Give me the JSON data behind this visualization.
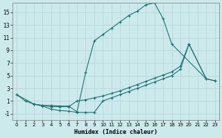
{
  "title": "",
  "xlabel": "Humidex (Indice chaleur)",
  "ylabel": "",
  "background_color": "#cce9ec",
  "grid_color": "#b0d8dc",
  "line_color": "#1a7070",
  "xlim": [
    -0.5,
    23.5
  ],
  "ylim": [
    -2,
    16.5
  ],
  "xticks": [
    0,
    1,
    2,
    3,
    4,
    5,
    6,
    7,
    8,
    9,
    10,
    11,
    12,
    13,
    14,
    15,
    16,
    17,
    18,
    19,
    20,
    21,
    22,
    23
  ],
  "yticks": [
    -1,
    1,
    3,
    5,
    7,
    9,
    11,
    13,
    15
  ],
  "curve1_x": [
    0,
    1,
    2,
    3,
    4,
    5,
    6,
    7,
    8,
    9,
    10,
    11,
    12,
    13,
    14,
    15,
    16,
    17,
    18,
    22
  ],
  "curve1_y": [
    2,
    1,
    0.5,
    0.3,
    0.3,
    0.2,
    0.2,
    -0.7,
    5.5,
    10.5,
    11.5,
    12.5,
    13.5,
    14.5,
    15.2,
    16.2,
    16.5,
    14,
    10,
    4.5
  ],
  "curve2_x": [
    0,
    2,
    3,
    4,
    5,
    6,
    7,
    8,
    9,
    10,
    11,
    12,
    13,
    14,
    15,
    16,
    17,
    18,
    19,
    20,
    22,
    23
  ],
  "curve2_y": [
    2,
    0.5,
    0.3,
    0.1,
    0.1,
    0.1,
    1.0,
    1.2,
    1.5,
    1.8,
    2.2,
    2.6,
    3.1,
    3.6,
    4.1,
    4.6,
    5.1,
    5.6,
    6.5,
    10.0,
    4.5,
    4.2
  ],
  "curve3_x": [
    2,
    3,
    4,
    5,
    6,
    7,
    8,
    9,
    10,
    11,
    12,
    13,
    14,
    15,
    16,
    17,
    18,
    19,
    20,
    22,
    23
  ],
  "curve3_y": [
    0.5,
    0.2,
    -0.3,
    -0.5,
    -0.6,
    -0.8,
    -0.8,
    -0.8,
    1.0,
    1.5,
    2.0,
    2.5,
    3.0,
    3.5,
    4.0,
    4.5,
    5.0,
    6.0,
    10.0,
    4.5,
    4.2
  ]
}
